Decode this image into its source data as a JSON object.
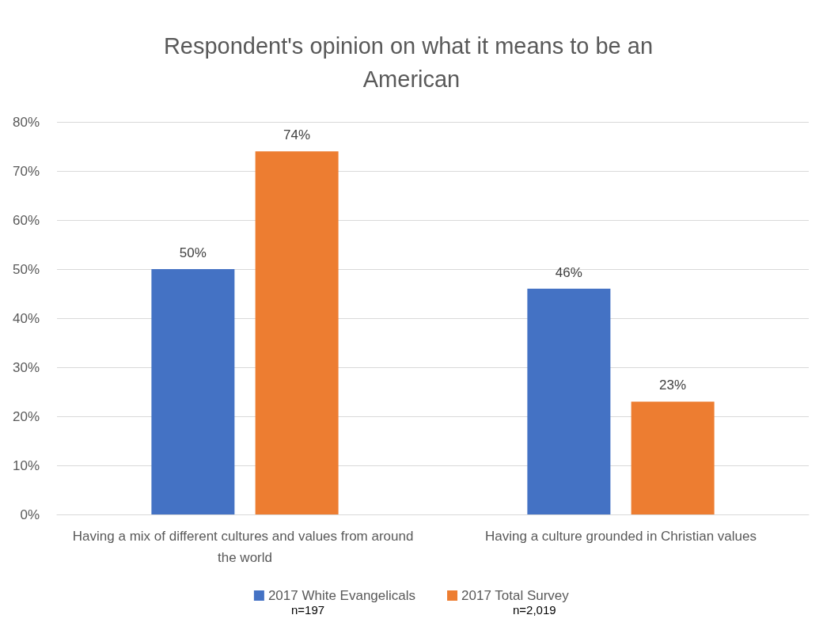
{
  "chart_data": {
    "type": "bar",
    "title": "Respondent's opinion on what it means to be an American",
    "categories": [
      "Having a mix of different cultures and values from around the world",
      "Having a culture grounded in Christian values"
    ],
    "series": [
      {
        "name": "2017 White Evangelicals",
        "color": "#4472c4",
        "values": [
          50,
          46
        ],
        "value_labels": [
          "50%",
          "46%"
        ]
      },
      {
        "name": "2017 Total Survey",
        "color": "#ed7d31",
        "values": [
          74,
          23
        ],
        "value_labels": [
          "74%",
          "23%"
        ]
      }
    ],
    "ylim": [
      0,
      80
    ],
    "yticks": [
      {
        "value": 0,
        "label": "0%"
      },
      {
        "value": 10,
        "label": "10%"
      },
      {
        "value": 20,
        "label": "20%"
      },
      {
        "value": 30,
        "label": "30%"
      },
      {
        "value": 40,
        "label": "40%"
      },
      {
        "value": 50,
        "label": "50%"
      },
      {
        "value": 60,
        "label": "60%"
      },
      {
        "value": 70,
        "label": "70%"
      },
      {
        "value": 80,
        "label": "80%"
      }
    ],
    "grid": "y",
    "legend": "bottom",
    "annotations": [
      "n=197",
      "n=2,019"
    ]
  }
}
